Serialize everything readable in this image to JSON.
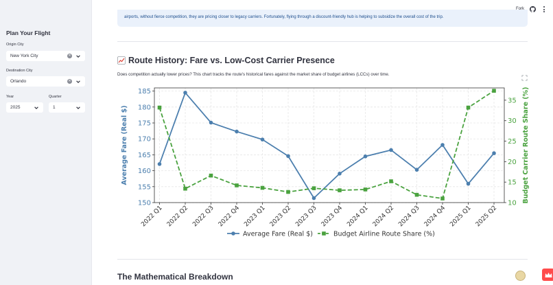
{
  "sidebar": {
    "title": "Plan Your Flight",
    "origin": {
      "label": "Origin City",
      "value": "New York City"
    },
    "destination": {
      "label": "Destination City",
      "value": "Orlando"
    },
    "year": {
      "label": "Year",
      "value": "2025"
    },
    "quarter": {
      "label": "Quarter",
      "value": "1"
    }
  },
  "header": {
    "fork_label": "Fork"
  },
  "info": {
    "text": "airports, without fierce competition, they are pricing closer to legacy carriers. Fortunately, flying through a discount-friendly hub is helping to subsidize the overall cost of the trip."
  },
  "section": {
    "title": "Route History: Fare vs. Low-Cost Carrier Presence",
    "description": "Does competition actually lower prices? This chart tracks the route's historical fares against the market share of budget airlines (LCCs) over time."
  },
  "next_section": {
    "title": "The Mathematical Breakdown"
  },
  "colors": {
    "fare": "#4c7fae",
    "share": "#4aa23f",
    "accent": "#ff4b4b"
  },
  "chart_data": {
    "type": "line",
    "categories": [
      "2022 Q1",
      "2022 Q2",
      "2022 Q3",
      "2022 Q4",
      "2023 Q1",
      "2023 Q2",
      "2023 Q3",
      "2023 Q4",
      "2024 Q1",
      "2024 Q2",
      "2024 Q3",
      "2024 Q4",
      "2025 Q1",
      "2025 Q2"
    ],
    "series": [
      {
        "name": "Average Fare (Real $)",
        "axis": "left",
        "style": "solid",
        "marker": "circle",
        "values": [
          162.1,
          184.5,
          175.1,
          172.3,
          169.8,
          164.6,
          151.4,
          159.1,
          164.5,
          166.5,
          160.3,
          168.1,
          155.9,
          165.5
        ]
      },
      {
        "name": "Budget Airline Route Share (%)",
        "axis": "right",
        "style": "dashed",
        "marker": "square",
        "values": [
          33.2,
          13.4,
          16.6,
          14.2,
          13.6,
          12.6,
          13.5,
          13.0,
          13.2,
          15.2,
          11.9,
          11.0,
          33.2,
          37.3
        ]
      }
    ],
    "ylabel": "Average Fare (Real $)",
    "y2label": "Budget Carrier Route Share (%)",
    "ylim": [
      150,
      186
    ],
    "y2lim": [
      10,
      38
    ],
    "yticks": [
      150,
      155,
      160,
      165,
      170,
      175,
      180,
      185
    ],
    "y2ticks": [
      10,
      15,
      20,
      25,
      30,
      35
    ],
    "grid": true,
    "legend": "bottom-center"
  }
}
